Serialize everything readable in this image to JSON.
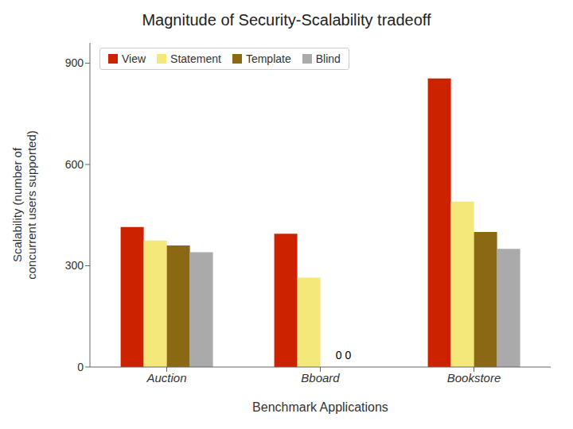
{
  "chart_data": {
    "type": "bar",
    "title": "Magnitude of Security-Scalability tradeoff",
    "xlabel": "Benchmark Applications",
    "ylabel": "Scalability (number of\nconcurrent users supported)",
    "categories": [
      "Auction",
      "Bboard",
      "Bookstore"
    ],
    "series": [
      {
        "name": "View",
        "color": "#cc2200",
        "values": [
          415,
          395,
          855
        ]
      },
      {
        "name": "Statement",
        "color": "#f5e87a",
        "values": [
          375,
          265,
          490
        ]
      },
      {
        "name": "Template",
        "color": "#8b6914",
        "values": [
          360,
          0,
          400
        ]
      },
      {
        "name": "Blind",
        "color": "#aaaaaa",
        "values": [
          340,
          0,
          350
        ]
      }
    ],
    "ylim": [
      0,
      960
    ],
    "yticks": [
      0,
      300,
      600,
      900
    ],
    "grid": false,
    "legend": "upper left",
    "annotations": [
      {
        "text": "0 0",
        "x": "Bboard",
        "y": 18
      }
    ]
  }
}
